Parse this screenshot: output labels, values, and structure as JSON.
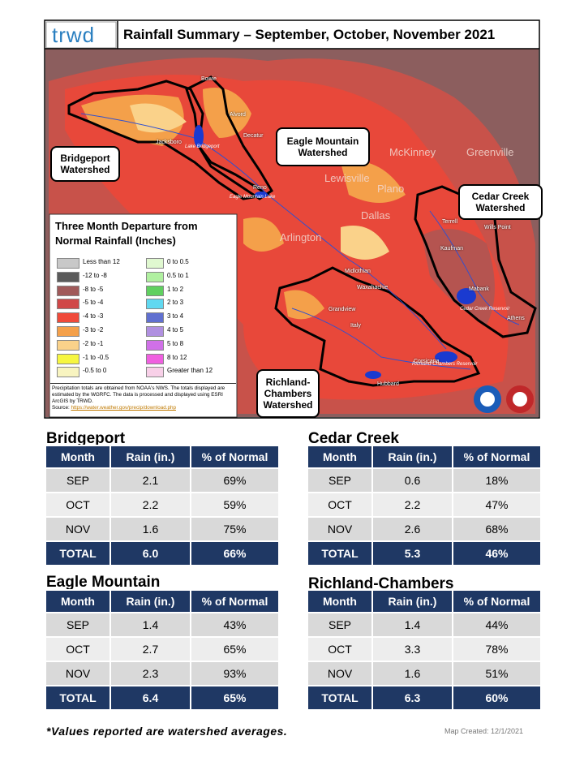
{
  "header": {
    "logo": "trwd",
    "title": "Rainfall Summary – September, October, November 2021"
  },
  "map": {
    "callouts": [
      "Bridgeport Watershed",
      "Eagle Mountain Watershed",
      "Cedar Creek Watershed",
      "Richland-Chambers Watershed"
    ],
    "cities": [
      "Bowie",
      "Alvord",
      "Decatur",
      "Jacksboro",
      "Reno",
      "Terrell",
      "Wills Point",
      "Kaufman",
      "Mabank",
      "Athens",
      "Midlothian",
      "Waxahachie",
      "Grandview",
      "Italy",
      "Corsicana",
      "Hubbard"
    ],
    "big_labels": [
      "McKinney",
      "Lewisville",
      "Dallas",
      "Arlington",
      "Greenville",
      "Plano"
    ],
    "lakes": [
      "Lake Bridgeport",
      "Eagle Mountain Lake",
      "Cedar Creek Reservoir",
      "Richland-Chambers Reservoir"
    ]
  },
  "legend": {
    "title": "Three Month Departure from Normal Rainfall (Inches)",
    "items": [
      {
        "label": "Less than 12",
        "color": "#c8c8c8"
      },
      {
        "label": "-12 to -8",
        "color": "#5a5a5a"
      },
      {
        "label": "-8 to -5",
        "color": "#a05a5a"
      },
      {
        "label": "-5 to -4",
        "color": "#d04848"
      },
      {
        "label": "-4 to -3",
        "color": "#f04a3a"
      },
      {
        "label": "-3 to -2",
        "color": "#f4a04a"
      },
      {
        "label": "-2 to -1",
        "color": "#fad28a"
      },
      {
        "label": "-1 to -0.5",
        "color": "#f6f640"
      },
      {
        "label": "-0.5 to 0",
        "color": "#f8f4c0"
      },
      {
        "label": "0 to 0.5",
        "color": "#e0f8d0"
      },
      {
        "label": "0.5 to 1",
        "color": "#b0f0a0"
      },
      {
        "label": "1 to 2",
        "color": "#60d060"
      },
      {
        "label": "2 to 3",
        "color": "#60d8f0"
      },
      {
        "label": "3 to 4",
        "color": "#6070d0"
      },
      {
        "label": "4 to 5",
        "color": "#b090e0"
      },
      {
        "label": "5 to 8",
        "color": "#d070e8"
      },
      {
        "label": "8 to 12",
        "color": "#f060e0"
      },
      {
        "label": "Greater than 12",
        "color": "#f8d0e8"
      }
    ],
    "note": "Precipitation totals are obtained from NOAA's NWS. The totals displayed are estimated by the WGRFC. The data is processed and displayed using ESRI ArcGIS by TRWD.",
    "source_label": "Source:",
    "source_url": "https://water.weather.gov/precip/download.php"
  },
  "tables": [
    {
      "name": "Bridgeport",
      "columns": [
        "Month",
        "Rain (in.)",
        "% of Normal"
      ],
      "rows": [
        [
          "SEP",
          "2.1",
          "69%"
        ],
        [
          "OCT",
          "2.2",
          "59%"
        ],
        [
          "NOV",
          "1.6",
          "75%"
        ]
      ],
      "total": [
        "TOTAL",
        "6.0",
        "66%"
      ]
    },
    {
      "name": "Cedar Creek",
      "columns": [
        "Month",
        "Rain (in.)",
        "% of Normal"
      ],
      "rows": [
        [
          "SEP",
          "0.6",
          "18%"
        ],
        [
          "OCT",
          "2.2",
          "47%"
        ],
        [
          "NOV",
          "2.6",
          "68%"
        ]
      ],
      "total": [
        "TOTAL",
        "5.3",
        "46%"
      ]
    },
    {
      "name": "Eagle Mountain",
      "columns": [
        "Month",
        "Rain (in.)",
        "% of Normal"
      ],
      "rows": [
        [
          "SEP",
          "1.4",
          "43%"
        ],
        [
          "OCT",
          "2.7",
          "65%"
        ],
        [
          "NOV",
          "2.3",
          "93%"
        ]
      ],
      "total": [
        "TOTAL",
        "6.4",
        "65%"
      ]
    },
    {
      "name": "Richland-Chambers",
      "columns": [
        "Month",
        "Rain (in.)",
        "% of Normal"
      ],
      "rows": [
        [
          "SEP",
          "1.4",
          "44%"
        ],
        [
          "OCT",
          "3.3",
          "78%"
        ],
        [
          "NOV",
          "1.6",
          "51%"
        ]
      ],
      "total": [
        "TOTAL",
        "6.3",
        "60%"
      ]
    }
  ],
  "footnote": "*Values reported are watershed averages.",
  "map_created": "Map Created: 12/1/2021"
}
